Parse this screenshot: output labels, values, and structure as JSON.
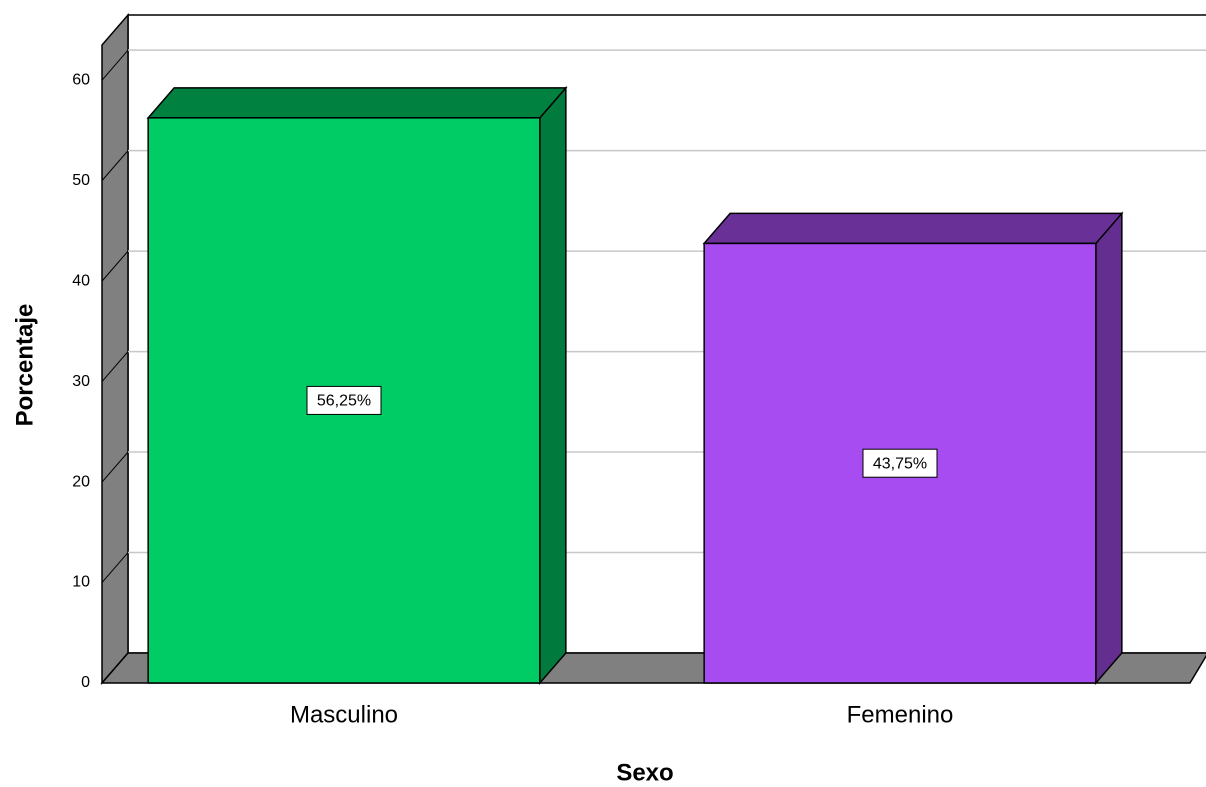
{
  "chart_data": {
    "type": "bar",
    "x_label": "Sexo",
    "y_label": "Porcentaje",
    "categories": [
      "Masculino",
      "Femenino"
    ],
    "values": [
      56.25,
      43.75
    ],
    "value_labels": [
      "56,25%",
      "43,75%"
    ],
    "colors": [
      "#00cc66",
      "#a64cf0"
    ],
    "ylim": [
      0,
      63.5
    ],
    "yticks": [
      0,
      10,
      20,
      30,
      40,
      50,
      60
    ],
    "grid": true
  }
}
